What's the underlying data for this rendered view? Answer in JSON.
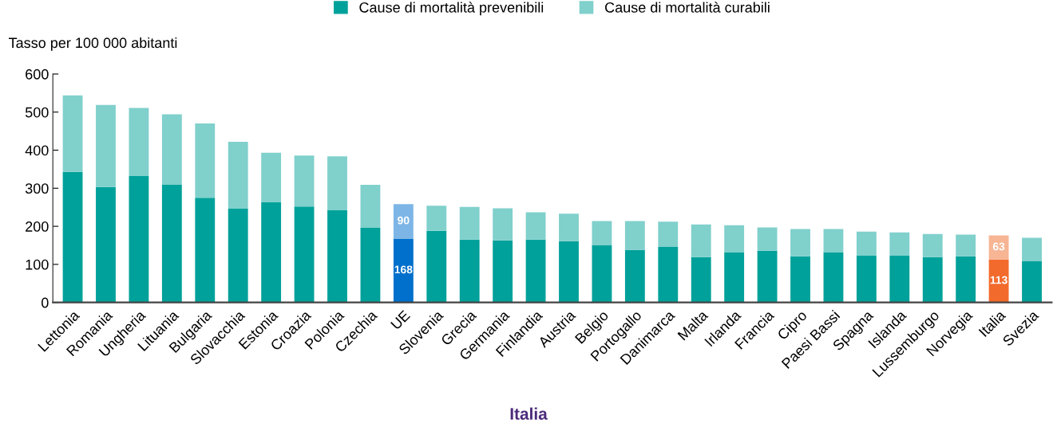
{
  "chart_data": {
    "type": "bar",
    "title": "Italia",
    "ylabel": "Tasso per 100 000 abitanti",
    "categories": [
      "Lettonia",
      "Romania",
      "Ungheria",
      "Lituania",
      "Bulgaria",
      "Slovacchia",
      "Estonia",
      "Croazia",
      "Polonia",
      "Czechia",
      "UE",
      "Slovenia",
      "Grecia",
      "Germania",
      "Finlandia",
      "Austria",
      "Belgio",
      "Portogallo",
      "Danimarca",
      "Malta",
      "Irlanda",
      "Francia",
      "Cipro",
      "Paesi Bassi",
      "Spagna",
      "Islanda",
      "Lussemburgo",
      "Norvegia",
      "Italia",
      "Svezia"
    ],
    "stacked": true,
    "ylim": [
      0,
      600
    ],
    "yticks": [
      0,
      100,
      200,
      300,
      400,
      500,
      600
    ],
    "grid": false,
    "legend": "top",
    "series": [
      {
        "name": "Cause di mortalità prevenibili",
        "color": "#00a19a",
        "colors": [
          "#00a19a",
          "#00a19a",
          "#00a19a",
          "#00a19a",
          "#00a19a",
          "#00a19a",
          "#00a19a",
          "#00a19a",
          "#00a19a",
          "#00a19a",
          "#0070cc",
          "#00a19a",
          "#00a19a",
          "#00a19a",
          "#00a19a",
          "#00a19a",
          "#00a19a",
          "#00a19a",
          "#00a19a",
          "#00a19a",
          "#00a19a",
          "#00a19a",
          "#00a19a",
          "#00a19a",
          "#00a19a",
          "#00a19a",
          "#00a19a",
          "#00a19a",
          "#f26a2c",
          "#00a19a"
        ],
        "values": [
          343,
          303,
          333,
          309,
          275,
          246,
          264,
          252,
          243,
          196,
          168,
          188,
          165,
          163,
          165,
          161,
          151,
          138,
          146,
          119,
          132,
          136,
          121,
          132,
          123,
          123,
          119,
          121,
          113,
          109
        ],
        "value_labels": [
          null,
          null,
          null,
          null,
          null,
          null,
          null,
          null,
          null,
          null,
          "168",
          null,
          null,
          null,
          null,
          null,
          null,
          null,
          null,
          null,
          null,
          null,
          null,
          null,
          null,
          null,
          null,
          null,
          "113",
          null
        ]
      },
      {
        "name": "Cause di mortalità curabili",
        "color": "#80d0cc",
        "colors": [
          "#80d0cc",
          "#80d0cc",
          "#80d0cc",
          "#80d0cc",
          "#80d0cc",
          "#80d0cc",
          "#80d0cc",
          "#80d0cc",
          "#80d0cc",
          "#80d0cc",
          "#7db6e6",
          "#80d0cc",
          "#80d0cc",
          "#80d0cc",
          "#80d0cc",
          "#80d0cc",
          "#80d0cc",
          "#80d0cc",
          "#80d0cc",
          "#80d0cc",
          "#80d0cc",
          "#80d0cc",
          "#80d0cc",
          "#80d0cc",
          "#80d0cc",
          "#80d0cc",
          "#80d0cc",
          "#80d0cc",
          "#f7b594",
          "#80d0cc"
        ],
        "values": [
          201,
          216,
          178,
          185,
          195,
          176,
          129,
          134,
          141,
          113,
          90,
          66,
          86,
          84,
          72,
          72,
          63,
          76,
          66,
          86,
          71,
          61,
          72,
          61,
          63,
          61,
          61,
          57,
          63,
          61
        ],
        "value_labels": [
          null,
          null,
          null,
          null,
          null,
          null,
          null,
          null,
          null,
          null,
          "90",
          null,
          null,
          null,
          null,
          null,
          null,
          null,
          null,
          null,
          null,
          null,
          null,
          null,
          null,
          null,
          null,
          null,
          "63",
          null
        ]
      }
    ]
  }
}
